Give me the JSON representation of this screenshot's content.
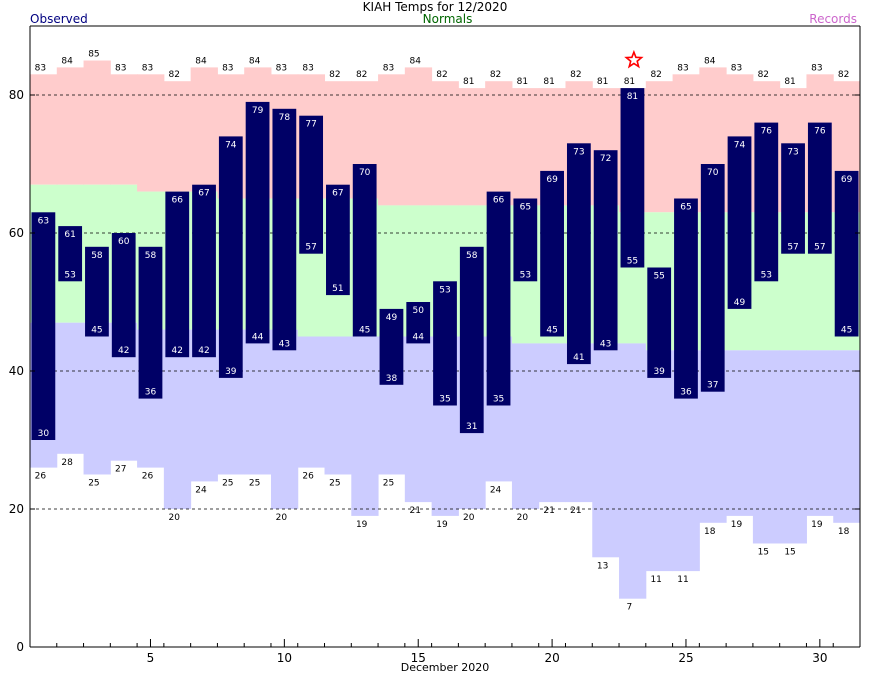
{
  "chart_data": {
    "type": "bar",
    "title": "KIAH Temps for 12/2020",
    "legend": {
      "observed": "Observed",
      "normals": "Normals",
      "records": "Records"
    },
    "xlabel": "December 2020",
    "ylim": [
      0,
      90
    ],
    "yticks": [
      0,
      20,
      40,
      60,
      80
    ],
    "xticks": [
      5,
      10,
      15,
      20,
      25,
      30
    ],
    "gridlines_dashed": [
      20,
      40,
      60,
      80
    ],
    "days": [
      1,
      2,
      3,
      4,
      5,
      6,
      7,
      8,
      9,
      10,
      11,
      12,
      13,
      14,
      15,
      16,
      17,
      18,
      19,
      20,
      21,
      22,
      23,
      24,
      25,
      26,
      27,
      28,
      29,
      30,
      31
    ],
    "record_high": [
      83,
      84,
      85,
      83,
      83,
      82,
      84,
      83,
      84,
      83,
      83,
      82,
      82,
      83,
      84,
      82,
      81,
      82,
      81,
      81,
      82,
      81,
      81,
      82,
      83,
      84,
      83,
      82,
      81,
      83,
      82
    ],
    "record_low": [
      26,
      28,
      25,
      27,
      26,
      20,
      24,
      25,
      25,
      20,
      26,
      25,
      19,
      25,
      21,
      19,
      20,
      24,
      20,
      21,
      21,
      13,
      7,
      11,
      11,
      18,
      19,
      15,
      15,
      19,
      18
    ],
    "normal_high": [
      67,
      67,
      67,
      67,
      66,
      66,
      66,
      65,
      65,
      65,
      65,
      65,
      65,
      64,
      64,
      64,
      64,
      64,
      64,
      64,
      64,
      64,
      63,
      63,
      63,
      63,
      63,
      63,
      63,
      63,
      63
    ],
    "normal_low": [
      47,
      47,
      47,
      47,
      46,
      46,
      46,
      46,
      46,
      46,
      45,
      45,
      45,
      45,
      45,
      45,
      45,
      45,
      44,
      44,
      44,
      44,
      44,
      43,
      43,
      43,
      43,
      43,
      43,
      43,
      43
    ],
    "observed_high": [
      63,
      61,
      58,
      60,
      58,
      66,
      67,
      74,
      79,
      78,
      77,
      67,
      70,
      49,
      50,
      53,
      58,
      66,
      65,
      69,
      73,
      72,
      81,
      55,
      65,
      70,
      74,
      76,
      73,
      76,
      69
    ],
    "observed_low": [
      30,
      53,
      45,
      42,
      36,
      42,
      42,
      39,
      44,
      43,
      57,
      51,
      45,
      38,
      44,
      35,
      31,
      35,
      53,
      45,
      41,
      43,
      55,
      39,
      36,
      37,
      49,
      53,
      57,
      57,
      45
    ],
    "record_marker_day": 23,
    "colors": {
      "observed": "#000066",
      "record_high": "#ffcccc",
      "normal": "#ccffcc",
      "record_low": "#ccccff",
      "observed_label": "#000080",
      "normals_label": "#006600",
      "records_label": "#cc66cc",
      "marker": "#ff0000"
    }
  }
}
